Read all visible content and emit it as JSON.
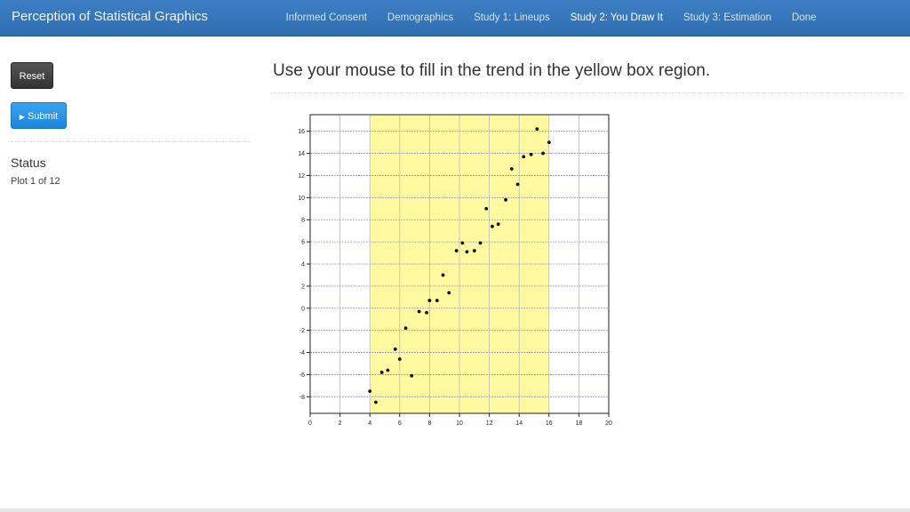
{
  "header": {
    "brand": "Perception of Statistical Graphics",
    "nav": [
      {
        "label": "Informed Consent",
        "active": false
      },
      {
        "label": "Demographics",
        "active": false
      },
      {
        "label": "Study 1: Lineups",
        "active": false
      },
      {
        "label": "Study 2: You Draw It",
        "active": true
      },
      {
        "label": "Study 3: Estimation",
        "active": false
      },
      {
        "label": "Done",
        "active": false
      }
    ]
  },
  "sidebar": {
    "reset_label": "Reset",
    "submit_label": "Submit",
    "status_title": "Status",
    "status_text": "Plot 1 of 12"
  },
  "main": {
    "instruction": "Use your mouse to fill in the trend in the yellow box region."
  },
  "chart_data": {
    "type": "scatter",
    "xlim": [
      0,
      20
    ],
    "ylim": [
      -9.5,
      17.5
    ],
    "x_ticks": [
      0,
      2,
      4,
      6,
      8,
      10,
      12,
      14,
      16,
      18,
      20
    ],
    "y_ticks": [
      -8,
      -6,
      -4,
      -2,
      0,
      2,
      4,
      6,
      8,
      10,
      12,
      14,
      16
    ],
    "highlight_region": {
      "x_start": 4,
      "x_end": 16,
      "color": "#fffaa0"
    },
    "grid": true,
    "points": [
      {
        "x": 4.0,
        "y": -7.5
      },
      {
        "x": 4.4,
        "y": -8.5
      },
      {
        "x": 4.8,
        "y": -5.8
      },
      {
        "x": 5.2,
        "y": -5.6
      },
      {
        "x": 5.7,
        "y": -3.7
      },
      {
        "x": 6.0,
        "y": -4.6
      },
      {
        "x": 6.4,
        "y": -1.8
      },
      {
        "x": 6.8,
        "y": -6.1
      },
      {
        "x": 7.3,
        "y": -0.3
      },
      {
        "x": 7.8,
        "y": -0.4
      },
      {
        "x": 8.0,
        "y": 0.7
      },
      {
        "x": 8.5,
        "y": 0.7
      },
      {
        "x": 8.9,
        "y": 3.0
      },
      {
        "x": 9.3,
        "y": 1.4
      },
      {
        "x": 9.8,
        "y": 5.2
      },
      {
        "x": 10.2,
        "y": 5.9
      },
      {
        "x": 10.5,
        "y": 5.1
      },
      {
        "x": 11.0,
        "y": 5.2
      },
      {
        "x": 11.4,
        "y": 5.9
      },
      {
        "x": 11.8,
        "y": 9.0
      },
      {
        "x": 12.2,
        "y": 7.4
      },
      {
        "x": 12.6,
        "y": 7.6
      },
      {
        "x": 13.1,
        "y": 9.8
      },
      {
        "x": 13.5,
        "y": 12.6
      },
      {
        "x": 13.9,
        "y": 11.2
      },
      {
        "x": 14.3,
        "y": 13.7
      },
      {
        "x": 14.8,
        "y": 13.9
      },
      {
        "x": 15.2,
        "y": 16.2
      },
      {
        "x": 15.6,
        "y": 14.0
      },
      {
        "x": 16.0,
        "y": 15.0
      }
    ]
  }
}
